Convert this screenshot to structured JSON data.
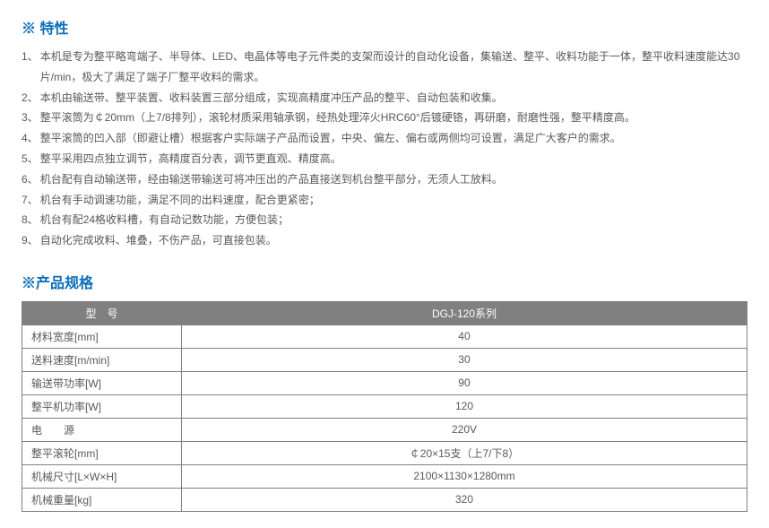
{
  "colors": {
    "title": "#0b6fb8",
    "body_text": "#595959",
    "table_border": "#808080",
    "table_header_bg": "#808080",
    "table_header_text": "#ffffff"
  },
  "features": {
    "title": "※ 特性",
    "items": [
      {
        "num": "1、",
        "text": "本机是专为整平略弯端子、半导体、LED、电晶体等电子元件类的支架而设计的自动化设备，集输送、整平、收料功能于一体，整平收料速度能达30片/min，极大了满足了端子厂整平收料的需求。"
      },
      {
        "num": "2、",
        "text": "本机由输送带、整平装置、收料装置三部分组成，实现高精度冲压产品的整平、自动包装和收集。"
      },
      {
        "num": "3、",
        "text": "整平滚筒为￠20mm（上7/8排列），滚轮材质采用轴承钢，经热处理淬火HRC60°后镀硬铬，再研磨，耐磨性强，整平精度高。"
      },
      {
        "num": "4、",
        "text": "整平滚筒的凹入部（即避让槽）根据客户实际端子产品而设置，中央、偏左、偏右或两侧均可设置，满足广大客户的需求。"
      },
      {
        "num": "5、",
        "text": "整平采用四点独立调节，高精度百分表，调节更直观、精度高。"
      },
      {
        "num": "6、",
        "text": "机台配有自动输送带，经由输送带输送可将冲压出的产品直接送到机台整平部分，无须人工放料。"
      },
      {
        "num": "7、",
        "text": "机台有手动调速功能，满足不同的出料速度，配合更紧密；"
      },
      {
        "num": "8、",
        "text": "机台有配24格收料槽，有自动记数功能，方便包装；"
      },
      {
        "num": "9、",
        "text": "自动化完成收料、堆叠，不伤产品，可直接包装。"
      }
    ]
  },
  "spec": {
    "title": "※产品规格",
    "header": {
      "label": "型　号",
      "value": "DGJ-120系列"
    },
    "rows": [
      {
        "label": "材料宽度[mm]",
        "value": "40"
      },
      {
        "label": "送料速度[m/min]",
        "value": "30"
      },
      {
        "label": "输送带功率[W]",
        "value": "90"
      },
      {
        "label": "整平机功率[W]",
        "value": "120"
      },
      {
        "label": "电　　源",
        "value": "220V"
      },
      {
        "label": "整平滚轮[mm]",
        "value": "￠20×15支（上7/下8）"
      },
      {
        "label": "机械尺寸[L×W×H]",
        "value": "2100×1130×1280mm"
      },
      {
        "label": "机械重量[kg]",
        "value": "320"
      }
    ]
  }
}
